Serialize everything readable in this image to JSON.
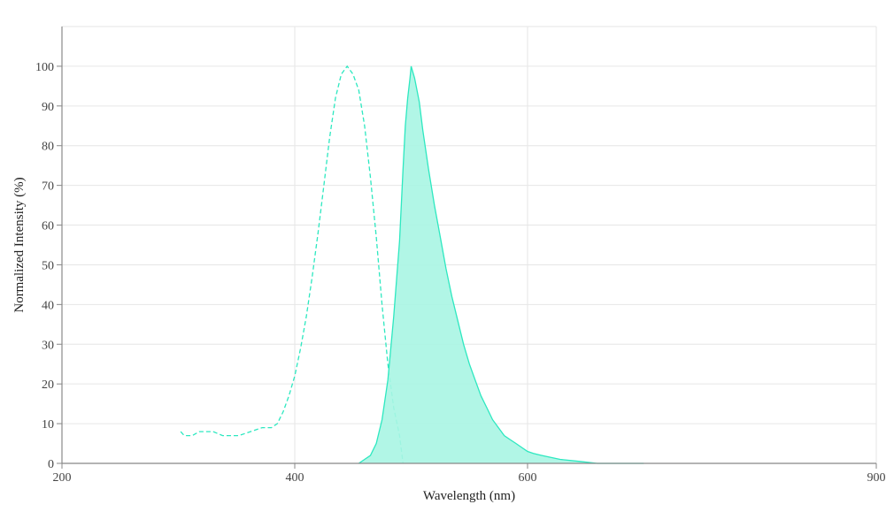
{
  "chart_data": {
    "type": "area",
    "xlabel": "Wavelength (nm)",
    "ylabel": "Normalized Intensity (%)",
    "xlim": [
      200,
      900
    ],
    "ylim": [
      0,
      110
    ],
    "x_ticks": [
      200,
      400,
      600,
      900
    ],
    "y_ticks": [
      0,
      10,
      20,
      30,
      40,
      50,
      60,
      70,
      80,
      90,
      100
    ],
    "x_tick_labels": [
      "200",
      "400",
      "600",
      "900"
    ],
    "y_tick_labels": [
      "0",
      "10",
      "20",
      "30",
      "40",
      "50",
      "60",
      "70",
      "80",
      "90",
      "100"
    ],
    "grid": true,
    "colors": {
      "curve": "#2de8c0",
      "fill": "#a8f5e3",
      "axis": "#888888",
      "grid": "#e6e6e6"
    },
    "series": [
      {
        "style": "dashed-line",
        "points": [
          [
            302,
            8
          ],
          [
            305,
            7
          ],
          [
            312,
            7
          ],
          [
            318,
            8
          ],
          [
            330,
            8
          ],
          [
            338,
            7
          ],
          [
            352,
            7
          ],
          [
            362,
            8
          ],
          [
            372,
            9
          ],
          [
            380,
            9
          ],
          [
            385,
            10
          ],
          [
            390,
            13
          ],
          [
            395,
            17
          ],
          [
            400,
            22
          ],
          [
            405,
            29
          ],
          [
            410,
            37
          ],
          [
            415,
            47
          ],
          [
            420,
            58
          ],
          [
            425,
            70
          ],
          [
            430,
            82
          ],
          [
            435,
            92
          ],
          [
            440,
            98
          ],
          [
            445,
            100
          ],
          [
            450,
            98
          ],
          [
            455,
            94
          ],
          [
            460,
            85
          ],
          [
            465,
            72
          ],
          [
            470,
            57
          ],
          [
            475,
            40
          ],
          [
            480,
            25
          ],
          [
            485,
            14
          ],
          [
            490,
            7
          ],
          [
            493,
            0
          ]
        ]
      },
      {
        "style": "filled-area",
        "points": [
          [
            455,
            0
          ],
          [
            460,
            1
          ],
          [
            465,
            2
          ],
          [
            470,
            5
          ],
          [
            475,
            11
          ],
          [
            480,
            21
          ],
          [
            485,
            37
          ],
          [
            490,
            56
          ],
          [
            493,
            74
          ],
          [
            495,
            85
          ],
          [
            497,
            92
          ],
          [
            499,
            97
          ],
          [
            500,
            100
          ],
          [
            503,
            97
          ],
          [
            507,
            91
          ],
          [
            510,
            84
          ],
          [
            515,
            74
          ],
          [
            520,
            65
          ],
          [
            525,
            57
          ],
          [
            530,
            49
          ],
          [
            535,
            42
          ],
          [
            540,
            36
          ],
          [
            545,
            30
          ],
          [
            550,
            25
          ],
          [
            555,
            21
          ],
          [
            560,
            17
          ],
          [
            565,
            14
          ],
          [
            570,
            11
          ],
          [
            575,
            9
          ],
          [
            580,
            7
          ],
          [
            585,
            6
          ],
          [
            590,
            5
          ],
          [
            595,
            4
          ],
          [
            600,
            3
          ],
          [
            605,
            2.5
          ],
          [
            612,
            2
          ],
          [
            620,
            1.5
          ],
          [
            628,
            1
          ],
          [
            645,
            0.5
          ],
          [
            660,
            0
          ],
          [
            700,
            0
          ]
        ]
      }
    ]
  }
}
